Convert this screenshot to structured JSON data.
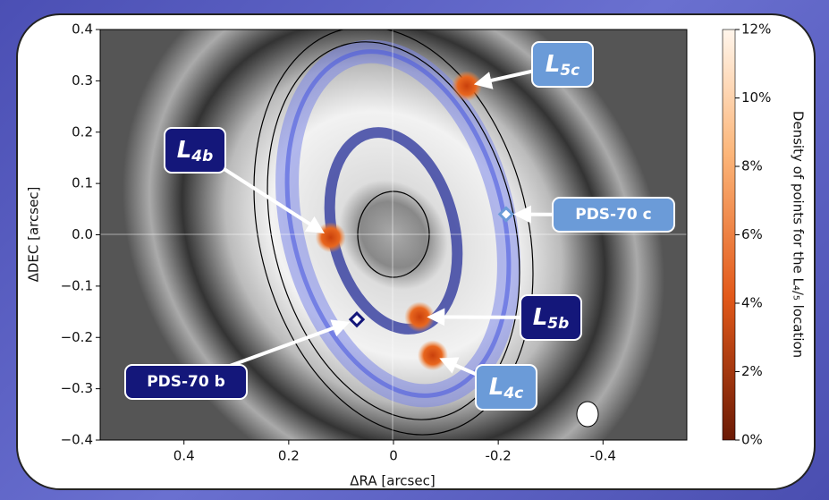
{
  "chart_data": {
    "type": "image",
    "xlabel": "ΔRA [arcsec]",
    "ylabel": "ΔDEC [arcsec]",
    "xlim": [
      0.56,
      -0.56
    ],
    "ylim": [
      -0.4,
      0.4
    ],
    "xticks": [
      {
        "value": 0.4,
        "label": "0.4"
      },
      {
        "value": 0.2,
        "label": "0.2"
      },
      0,
      {
        "value": -0.2,
        "label": "-0.2"
      },
      {
        "value": -0.4,
        "label": "-0.4"
      }
    ],
    "yticks": [
      {
        "value": -0.4,
        "label": "−0.4"
      },
      {
        "value": -0.3,
        "label": "−0.3"
      },
      {
        "value": -0.2,
        "label": "−0.2"
      },
      {
        "value": -0.1,
        "label": "−0.1"
      },
      {
        "value": 0,
        "label": "0.0"
      },
      {
        "value": 0.1,
        "label": "0.1"
      },
      {
        "value": 0.2,
        "label": "0.2"
      },
      {
        "value": 0.3,
        "label": "0.3"
      },
      {
        "value": 0.4,
        "label": "0.4"
      }
    ],
    "colorbar": {
      "label": "Density of points for the L₄/₅ location",
      "lim": [
        0,
        12
      ],
      "ticks": [
        {
          "value": 0,
          "label": "0%"
        },
        {
          "value": 2,
          "label": "2%"
        },
        {
          "value": 4,
          "label": "4%"
        },
        {
          "value": 6,
          "label": "6%"
        },
        {
          "value": 8,
          "label": "8%"
        },
        {
          "value": 10,
          "label": "10%"
        },
        {
          "value": 12,
          "label": "12%"
        }
      ]
    },
    "annotations": [
      {
        "label": "L4b",
        "x": 0.12,
        "y": -0.005,
        "color": "#14177a"
      },
      {
        "label": "L5c",
        "x": -0.14,
        "y": 0.29,
        "color": "#6b9bd8"
      },
      {
        "label": "PDS-70 c",
        "x": -0.215,
        "y": 0.04,
        "color": "#6b9bd8"
      },
      {
        "label": "L5b",
        "x": -0.05,
        "y": -0.16,
        "color": "#14177a"
      },
      {
        "label": "L4c",
        "x": -0.075,
        "y": -0.235,
        "color": "#6b9bd8"
      },
      {
        "label": "PDS-70 b",
        "x": 0.07,
        "y": -0.165,
        "color": "#14177a"
      }
    ]
  }
}
